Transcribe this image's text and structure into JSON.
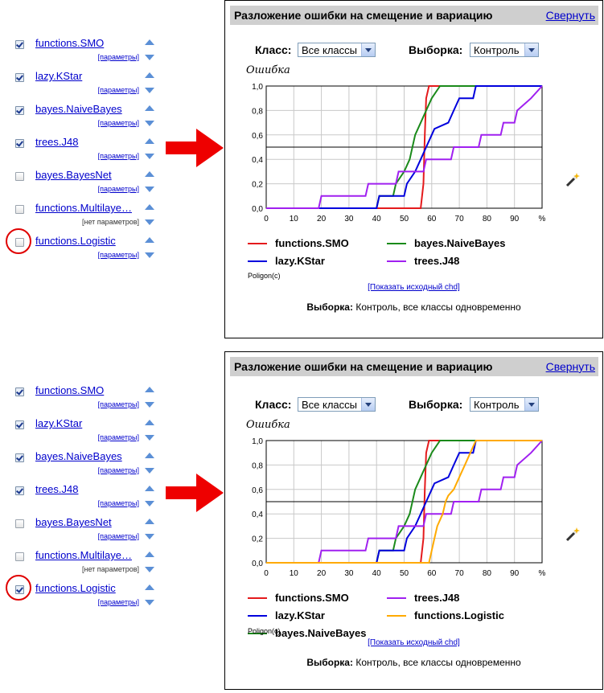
{
  "sections": [
    {
      "algorithms": [
        {
          "name": "functions.SMO",
          "params": "[параметры]",
          "checked": true
        },
        {
          "name": "lazy.KStar",
          "params": "[параметры]",
          "checked": true
        },
        {
          "name": "bayes.NaiveBayes",
          "params": "[параметры]",
          "checked": true
        },
        {
          "name": "trees.J48",
          "params": "[параметры]",
          "checked": true
        },
        {
          "name": "bayes.BayesNet",
          "params": "[параметры]",
          "checked": false
        },
        {
          "name": "functions.Multilaye…",
          "params": "[нет параметров]",
          "checked": false
        },
        {
          "name": "functions.Logistic",
          "params": "[параметры]",
          "checked": false
        }
      ],
      "panel": {
        "title": "Разложение ошибки на смещение и вариацию",
        "collapse": "Свернуть",
        "class_label": "Класс:",
        "class_value": "Все классы",
        "sample_label": "Выборка:",
        "sample_value": "Контроль",
        "yaxis_label": "Ошибка",
        "poligon": "Poligon(c)",
        "show_chd": "[Показать исходный chd]",
        "footer_label": "Выборка:",
        "footer_value": "Контроль, все классы одновременно"
      }
    },
    {
      "algorithms": [
        {
          "name": "functions.SMO",
          "params": "[параметры]",
          "checked": true
        },
        {
          "name": "lazy.KStar",
          "params": "[параметры]",
          "checked": true
        },
        {
          "name": "bayes.NaiveBayes",
          "params": "[параметры]",
          "checked": true
        },
        {
          "name": "trees.J48",
          "params": "[параметры]",
          "checked": true
        },
        {
          "name": "bayes.BayesNet",
          "params": "[параметры]",
          "checked": false
        },
        {
          "name": "functions.Multilaye…",
          "params": "[нет параметров]",
          "checked": false
        },
        {
          "name": "functions.Logistic",
          "params": "[параметры]",
          "checked": true
        }
      ],
      "panel": {
        "title": "Разложение ошибки на смещение и вариацию",
        "collapse": "Свернуть",
        "class_label": "Класс:",
        "class_value": "Все классы",
        "sample_label": "Выборка:",
        "sample_value": "Контроль",
        "yaxis_label": "Ошибка",
        "poligon": "Poligon(c)",
        "show_chd": "[Показать исходный chd]",
        "footer_label": "Выборка:",
        "footer_value": "Контроль, все классы одновременно"
      }
    }
  ],
  "colors": {
    "functions.SMO": "#e41a1c",
    "bayes.NaiveBayes": "#1a8a1a",
    "lazy.KStar": "#0000dd",
    "trees.J48": "#a020f0",
    "functions.Logistic": "#ffaa00",
    "accent_red": "#ee0000",
    "link": "#0000cc"
  },
  "chart_data": [
    {
      "type": "line",
      "xlabel": "%",
      "ylabel": "Ошибка",
      "xlim": [
        0,
        100
      ],
      "ylim": [
        0,
        1
      ],
      "x_ticks": [
        "0",
        "10",
        "20",
        "30",
        "40",
        "50",
        "60",
        "70",
        "80",
        "90",
        "%"
      ],
      "y_ticks": [
        "0,0",
        "0,2",
        "0,4",
        "0,6",
        "0,8",
        "1,0"
      ],
      "hline": 0.5,
      "legend": [
        "functions.SMO",
        "bayes.NaiveBayes",
        "lazy.KStar",
        "trees.J48"
      ],
      "series": [
        {
          "name": "functions.SMO",
          "points": [
            [
              0,
              0
            ],
            [
              56,
              0
            ],
            [
              57,
              0.2
            ],
            [
              57.5,
              0.6
            ],
            [
              58,
              0.9
            ],
            [
              59,
              1
            ],
            [
              100,
              1
            ]
          ]
        },
        {
          "name": "bayes.NaiveBayes",
          "points": [
            [
              0,
              0
            ],
            [
              40,
              0
            ],
            [
              41,
              0.1
            ],
            [
              46,
              0.1
            ],
            [
              47,
              0.2
            ],
            [
              50,
              0.3
            ],
            [
              52,
              0.4
            ],
            [
              54,
              0.6
            ],
            [
              56,
              0.7
            ],
            [
              58,
              0.8
            ],
            [
              60,
              0.9
            ],
            [
              63,
              1
            ],
            [
              100,
              1
            ]
          ]
        },
        {
          "name": "lazy.KStar",
          "points": [
            [
              0,
              0
            ],
            [
              40,
              0
            ],
            [
              41,
              0.1
            ],
            [
              50,
              0.1
            ],
            [
              51,
              0.2
            ],
            [
              54,
              0.3
            ],
            [
              56,
              0.4
            ],
            [
              58,
              0.5
            ],
            [
              60,
              0.6
            ],
            [
              61,
              0.65
            ],
            [
              66,
              0.7
            ],
            [
              68,
              0.8
            ],
            [
              70,
              0.9
            ],
            [
              75,
              0.9
            ],
            [
              76,
              1
            ],
            [
              100,
              1
            ]
          ]
        },
        {
          "name": "trees.J48",
          "points": [
            [
              0,
              0
            ],
            [
              19,
              0
            ],
            [
              20,
              0.1
            ],
            [
              36,
              0.1
            ],
            [
              37,
              0.2
            ],
            [
              47,
              0.2
            ],
            [
              48,
              0.3
            ],
            [
              57,
              0.3
            ],
            [
              58,
              0.4
            ],
            [
              67,
              0.4
            ],
            [
              68,
              0.5
            ],
            [
              77,
              0.5
            ],
            [
              78,
              0.6
            ],
            [
              85,
              0.6
            ],
            [
              86,
              0.7
            ],
            [
              90,
              0.7
            ],
            [
              91,
              0.8
            ],
            [
              96,
              0.9
            ],
            [
              100,
              1
            ]
          ]
        }
      ]
    },
    {
      "type": "line",
      "xlabel": "%",
      "ylabel": "Ошибка",
      "xlim": [
        0,
        100
      ],
      "ylim": [
        0,
        1
      ],
      "x_ticks": [
        "0",
        "10",
        "20",
        "30",
        "40",
        "50",
        "60",
        "70",
        "80",
        "90",
        "%"
      ],
      "y_ticks": [
        "0,0",
        "0,2",
        "0,4",
        "0,6",
        "0,8",
        "1,0"
      ],
      "hline": 0.5,
      "legend": [
        "functions.SMO",
        "trees.J48",
        "lazy.KStar",
        "functions.Logistic",
        "bayes.NaiveBayes"
      ],
      "series": [
        {
          "name": "functions.SMO",
          "points": [
            [
              0,
              0
            ],
            [
              56,
              0
            ],
            [
              57,
              0.2
            ],
            [
              57.5,
              0.6
            ],
            [
              58,
              0.9
            ],
            [
              59,
              1
            ],
            [
              100,
              1
            ]
          ]
        },
        {
          "name": "bayes.NaiveBayes",
          "points": [
            [
              0,
              0
            ],
            [
              40,
              0
            ],
            [
              41,
              0.1
            ],
            [
              46,
              0.1
            ],
            [
              47,
              0.2
            ],
            [
              50,
              0.3
            ],
            [
              52,
              0.4
            ],
            [
              54,
              0.6
            ],
            [
              56,
              0.7
            ],
            [
              58,
              0.8
            ],
            [
              60,
              0.9
            ],
            [
              63,
              1
            ],
            [
              100,
              1
            ]
          ]
        },
        {
          "name": "lazy.KStar",
          "points": [
            [
              0,
              0
            ],
            [
              40,
              0
            ],
            [
              41,
              0.1
            ],
            [
              50,
              0.1
            ],
            [
              51,
              0.2
            ],
            [
              54,
              0.3
            ],
            [
              56,
              0.4
            ],
            [
              58,
              0.5
            ],
            [
              60,
              0.6
            ],
            [
              61,
              0.65
            ],
            [
              66,
              0.7
            ],
            [
              68,
              0.8
            ],
            [
              70,
              0.9
            ],
            [
              75,
              0.9
            ],
            [
              76,
              1
            ],
            [
              100,
              1
            ]
          ]
        },
        {
          "name": "trees.J48",
          "points": [
            [
              0,
              0
            ],
            [
              19,
              0
            ],
            [
              20,
              0.1
            ],
            [
              36,
              0.1
            ],
            [
              37,
              0.2
            ],
            [
              47,
              0.2
            ],
            [
              48,
              0.3
            ],
            [
              57,
              0.3
            ],
            [
              58,
              0.4
            ],
            [
              67,
              0.4
            ],
            [
              68,
              0.5
            ],
            [
              77,
              0.5
            ],
            [
              78,
              0.6
            ],
            [
              85,
              0.6
            ],
            [
              86,
              0.7
            ],
            [
              90,
              0.7
            ],
            [
              91,
              0.8
            ],
            [
              96,
              0.9
            ],
            [
              100,
              1
            ]
          ]
        },
        {
          "name": "functions.Logistic",
          "points": [
            [
              0,
              0
            ],
            [
              59,
              0
            ],
            [
              60,
              0.1
            ],
            [
              61,
              0.2
            ],
            [
              62,
              0.3
            ],
            [
              64,
              0.4
            ],
            [
              65,
              0.5
            ],
            [
              66,
              0.55
            ],
            [
              68,
              0.6
            ],
            [
              70,
              0.7
            ],
            [
              72,
              0.8
            ],
            [
              74,
              0.9
            ],
            [
              76,
              1
            ],
            [
              100,
              1
            ]
          ]
        }
      ]
    }
  ]
}
